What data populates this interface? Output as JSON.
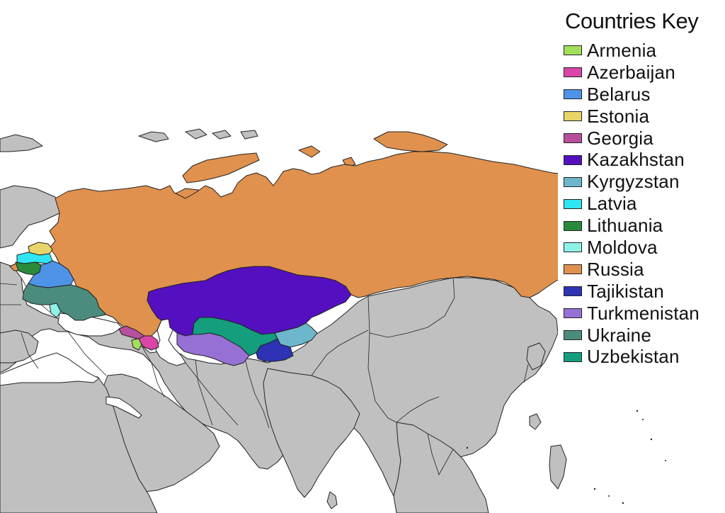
{
  "legend": {
    "title": "Countries Key",
    "items": [
      {
        "name": "Armenia",
        "color": "#a3e05a"
      },
      {
        "name": "Azerbaijan",
        "color": "#d946a8"
      },
      {
        "name": "Belarus",
        "color": "#4f93e8"
      },
      {
        "name": "Estonia",
        "color": "#e8d468"
      },
      {
        "name": "Georgia",
        "color": "#b84e9e"
      },
      {
        "name": "Kazakhstan",
        "color": "#5410c0"
      },
      {
        "name": "Kyrgyzstan",
        "color": "#6cb7cc"
      },
      {
        "name": "Latvia",
        "color": "#2ee6f2"
      },
      {
        "name": "Lithuania",
        "color": "#2a8a3c"
      },
      {
        "name": "Moldova",
        "color": "#8df2e6"
      },
      {
        "name": "Russia",
        "color": "#e0914e"
      },
      {
        "name": "Tajikistan",
        "color": "#2d33b4"
      },
      {
        "name": "Turkmenistan",
        "color": "#9670d4"
      },
      {
        "name": "Ukraine",
        "color": "#4c8c7e"
      },
      {
        "name": "Uzbekistan",
        "color": "#149e7e"
      }
    ]
  },
  "map": {
    "other_land_color": "#c0c0c0",
    "water_color": "#ffffff",
    "border_color": "#222222"
  }
}
